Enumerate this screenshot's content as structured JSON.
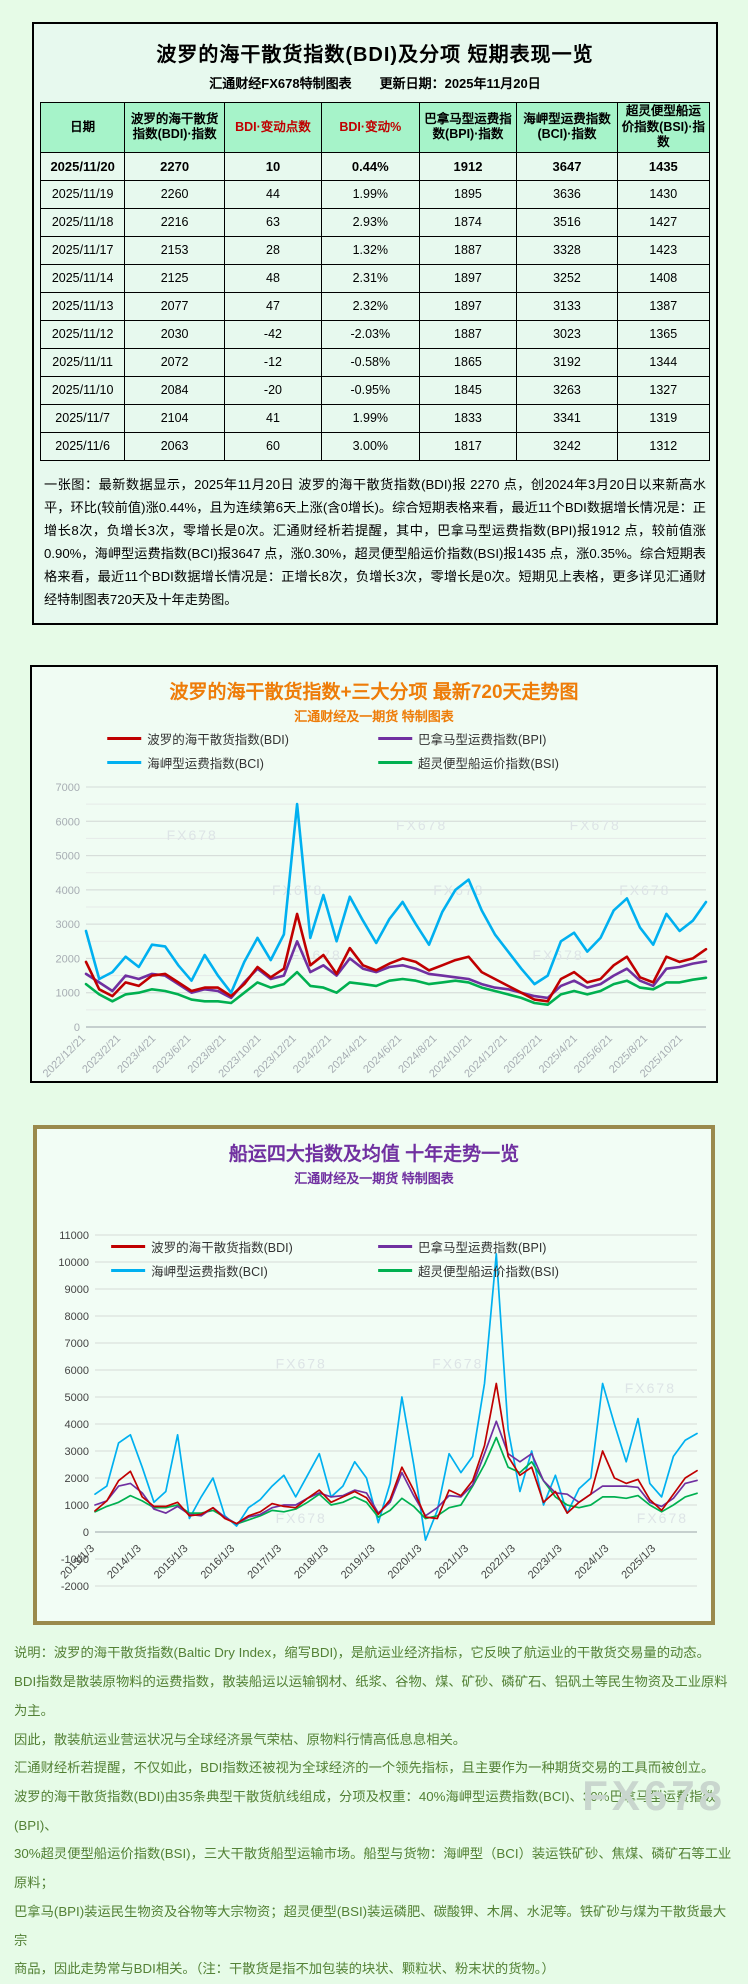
{
  "brand": {
    "watermark": "FX678"
  },
  "colors": {
    "bdi_red": "#c00000",
    "bpi_purple": "#7030a0",
    "bci_blue": "#00b0f0",
    "bsi_green": "#00b050",
    "accent_orange": "#ee7c08",
    "accent_purple": "#7030a0",
    "footer_green": "#538135",
    "header_mint": "#a6f3c9"
  },
  "table_panel": {
    "title": "波罗的海干散货指数(BDI)及分项  短期表现一览",
    "subtitle_left": "汇通财经FX678特制图表",
    "subtitle_right": "更新日期：2025年11月20日",
    "columns": [
      "日期",
      "波罗的海干散货指数(BDI)·指数",
      "BDI·变动点数",
      "BDI·变动%",
      "巴拿马型运费指数(BPI)·指数",
      "海岬型运费指数(BCI)·指数",
      "超灵便型船运价指数(BSI)·指数"
    ],
    "red_columns": [
      2,
      3
    ],
    "rows": [
      [
        "2025/11/20",
        "2270",
        "10",
        "0.44%",
        "1912",
        "3647",
        "1435"
      ],
      [
        "2025/11/19",
        "2260",
        "44",
        "1.99%",
        "1895",
        "3636",
        "1430"
      ],
      [
        "2025/11/18",
        "2216",
        "63",
        "2.93%",
        "1874",
        "3516",
        "1427"
      ],
      [
        "2025/11/17",
        "2153",
        "28",
        "1.32%",
        "1887",
        "3328",
        "1423"
      ],
      [
        "2025/11/14",
        "2125",
        "48",
        "2.31%",
        "1897",
        "3252",
        "1408"
      ],
      [
        "2025/11/13",
        "2077",
        "47",
        "2.32%",
        "1897",
        "3133",
        "1387"
      ],
      [
        "2025/11/12",
        "2030",
        "-42",
        "-2.03%",
        "1887",
        "3023",
        "1365"
      ],
      [
        "2025/11/11",
        "2072",
        "-12",
        "-0.58%",
        "1865",
        "3192",
        "1344"
      ],
      [
        "2025/11/10",
        "2084",
        "-20",
        "-0.95%",
        "1845",
        "3263",
        "1327"
      ],
      [
        "2025/11/7",
        "2104",
        "41",
        "1.99%",
        "1833",
        "3341",
        "1319"
      ],
      [
        "2025/11/6",
        "2063",
        "60",
        "3.00%",
        "1817",
        "3242",
        "1312"
      ]
    ],
    "note": "一张图：最新数据显示，2025年11月20日 波罗的海干散货指数(BDI)报 2270 点，创2024年3月20日以来新高水平，环比(较前值)涨0.44%，且为连续第6天上涨(含0增长)。综合短期表格来看，最近11个BDI数据增长情况是：正增长8次，负增长3次，零增长是0次。汇通财经析若提醒，其中，巴拿马型运费指数(BPI)报1912 点，较前值涨0.90%，海岬型运费指数(BCI)报3647 点，涨0.30%，超灵便型船运价指数(BSI)报1435 点，涨0.35%。综合短期表格来看，最近11个BDI数据增长情况是：正增长8次，负增长3次，零增长是0次。短期见上表格，更多详见汇通财经特制图表720天及十年走势图。"
  },
  "chart_data": [
    {
      "type": "line",
      "title": "波罗的海干散货指数+三大分项  最新720天走势图",
      "subtitle": "汇通财经及一期货 特制图表",
      "ylim": [
        0,
        7000
      ],
      "y_tick_step": 1000,
      "y_minor_step": 500,
      "grid": true,
      "legend_position": "top",
      "x_tick_labels": [
        "2022/12/21",
        "2023/2/21",
        "2023/4/21",
        "2023/6/21",
        "2023/8/21",
        "2023/10/21",
        "2023/12/21",
        "2024/2/21",
        "2024/4/21",
        "2024/6/21",
        "2024/8/21",
        "2024/10/21",
        "2024/12/21",
        "2025/2/21",
        "2025/4/21",
        "2025/6/21",
        "2025/8/21",
        "2025/10/21"
      ],
      "series": [
        {
          "name": "波罗的海干散货指数(BDI)",
          "color": "#c00000",
          "values": [
            1900,
            1100,
            900,
            1300,
            1200,
            1500,
            1550,
            1300,
            1050,
            1150,
            1150,
            900,
            1250,
            1750,
            1450,
            1700,
            3300,
            1800,
            2100,
            1550,
            2300,
            1800,
            1650,
            1850,
            2000,
            1900,
            1650,
            1800,
            1950,
            2050,
            1600,
            1400,
            1200,
            1000,
            800,
            750,
            1400,
            1600,
            1300,
            1400,
            1800,
            2050,
            1450,
            1300,
            2050,
            1900,
            2000,
            2270
          ]
        },
        {
          "name": "巴拿马型运费指数(BPI)",
          "color": "#7030a0",
          "values": [
            1550,
            1300,
            1050,
            1500,
            1400,
            1550,
            1500,
            1250,
            1000,
            1100,
            1050,
            850,
            1300,
            1700,
            1400,
            1500,
            2500,
            1600,
            1800,
            1500,
            2000,
            1700,
            1600,
            1750,
            1800,
            1700,
            1550,
            1500,
            1450,
            1400,
            1250,
            1150,
            1100,
            1000,
            900,
            850,
            1200,
            1350,
            1150,
            1250,
            1500,
            1700,
            1350,
            1200,
            1700,
            1750,
            1850,
            1912
          ]
        },
        {
          "name": "海岬型运费指数(BCI)",
          "color": "#00b0f0",
          "values": [
            2800,
            1400,
            1600,
            2050,
            1750,
            2400,
            2350,
            1800,
            1350,
            2100,
            1500,
            1000,
            1900,
            2600,
            1950,
            2700,
            6500,
            2600,
            3850,
            2500,
            3800,
            3100,
            2450,
            3150,
            3650,
            3000,
            2400,
            3350,
            4000,
            4300,
            3400,
            2700,
            2200,
            1700,
            1250,
            1500,
            2500,
            2750,
            2200,
            2600,
            3400,
            3750,
            2900,
            2400,
            3300,
            2800,
            3100,
            3647
          ]
        },
        {
          "name": "超灵便型船运价指数(BSI)",
          "color": "#00b050",
          "values": [
            1250,
            950,
            750,
            950,
            1000,
            1100,
            1050,
            950,
            800,
            750,
            750,
            700,
            1000,
            1300,
            1150,
            1250,
            1600,
            1200,
            1150,
            1000,
            1300,
            1250,
            1200,
            1350,
            1400,
            1350,
            1250,
            1300,
            1350,
            1300,
            1150,
            1050,
            950,
            850,
            700,
            650,
            950,
            1050,
            950,
            1050,
            1250,
            1350,
            1150,
            1100,
            1300,
            1300,
            1380,
            1435
          ]
        }
      ]
    },
    {
      "type": "line",
      "title": "船运四大指数及均值 十年走势一览",
      "subtitle": "汇通财经及一期货 特制图表",
      "ylim": [
        -2000,
        11000
      ],
      "y_tick_step": 1000,
      "y_minor_step": 0,
      "grid": true,
      "legend_position": "top-inside",
      "x_tick_labels": [
        "2013/1/3",
        "2014/1/3",
        "2015/1/3",
        "2016/1/3",
        "2017/1/3",
        "2018/1/3",
        "2019/1/3",
        "2020/1/3",
        "2021/1/3",
        "2022/1/3",
        "2023/1/3",
        "2024/1/3",
        "2025/1/3"
      ],
      "series": [
        {
          "name": "波罗的海干散货指数(BDI)",
          "color": "#c00000",
          "values": [
            780,
            1150,
            1900,
            2250,
            1300,
            950,
            950,
            1100,
            600,
            650,
            900,
            500,
            310,
            600,
            750,
            1050,
            950,
            900,
            1250,
            1550,
            1100,
            1300,
            1500,
            1270,
            650,
            1200,
            2400,
            1550,
            550,
            500,
            1550,
            1350,
            1900,
            3200,
            5500,
            2800,
            2100,
            2400,
            1100,
            1500,
            700,
            1100,
            1400,
            3000,
            2000,
            1800,
            1950,
            1200,
            800,
            1400,
            2000,
            2270
          ]
        },
        {
          "name": "巴拿马型运费指数(BPI)",
          "color": "#7030a0",
          "values": [
            1000,
            1150,
            1700,
            1800,
            1450,
            850,
            700,
            950,
            650,
            600,
            900,
            550,
            300,
            550,
            650,
            900,
            1000,
            1000,
            1250,
            1450,
            1300,
            1350,
            1550,
            1450,
            700,
            1100,
            2200,
            1350,
            600,
            900,
            1350,
            1300,
            1750,
            2900,
            4100,
            2900,
            2600,
            2900,
            1900,
            1450,
            1400,
            1100,
            1400,
            1700,
            1700,
            1700,
            1650,
            1100,
            950,
            1250,
            1800,
            1912
          ]
        },
        {
          "name": "海岬型运费指数(BCI)",
          "color": "#00b0f0",
          "values": [
            1400,
            1700,
            3300,
            3600,
            2400,
            1100,
            1500,
            3600,
            500,
            1300,
            2000,
            600,
            220,
            900,
            1200,
            1700,
            2100,
            1300,
            2100,
            2900,
            1300,
            1700,
            2600,
            2000,
            350,
            1800,
            5000,
            2500,
            -300,
            800,
            2900,
            2200,
            2800,
            5500,
            10300,
            3800,
            1500,
            3000,
            1000,
            2100,
            700,
            1600,
            2000,
            5500,
            4000,
            2600,
            4200,
            1800,
            1300,
            2800,
            3400,
            3647
          ]
        },
        {
          "name": "超灵便型船运价指数(BSI)",
          "color": "#00b050",
          "values": [
            750,
            950,
            1100,
            1350,
            1150,
            900,
            900,
            1000,
            700,
            700,
            800,
            550,
            300,
            450,
            600,
            800,
            750,
            850,
            1100,
            1400,
            1000,
            1100,
            1300,
            1100,
            550,
            800,
            1250,
            950,
            500,
            600,
            900,
            1000,
            1700,
            2500,
            3500,
            2400,
            2200,
            2600,
            1900,
            1300,
            1000,
            900,
            1000,
            1300,
            1300,
            1250,
            1350,
            1000,
            750,
            1000,
            1300,
            1435
          ]
        }
      ]
    }
  ],
  "footer": {
    "lines": [
      "说明：波罗的海干散货指数(Baltic Dry Index，缩写BDI)，是航运业经济指标，它反映了航运业的干散货交易量的动态。",
      "BDI指数是散装原物料的运费指数，散装船运以运输钢材、纸浆、谷物、煤、矿砂、磷矿石、铝矾土等民生物资及工业原料为主。",
      "因此，散装航运业营运状况与全球经济景气荣枯、原物料行情高低息息相关。",
      "汇通财经析若提醒，不仅如此，BDI指数还被视为全球经济的一个领先指标，且主要作为一种期货交易的工具而被创立。",
      "波罗的海干散货指数(BDI)由35条典型干散货航线组成，分项及权重：40%海岬型运费指数(BCI)、30%巴拿马型运费指数(BPI)、",
      "30%超灵便型船运价指数(BSI)，三大干散货船型运输市场。船型与货物：海岬型（BCI）装运铁矿砂、焦煤、磷矿石等工业原料；",
      "巴拿马(BPI)装运民生物资及谷物等大宗物资；超灵便型(BSI)装运磷肥、碳酸钾、木屑、水泥等。铁矿砂与煤为干散货最大宗",
      "商品，因此走势常与BDI相关。（注：干散货是指不加包装的块状、颗粒状、粉末状的货物。）"
    ]
  }
}
